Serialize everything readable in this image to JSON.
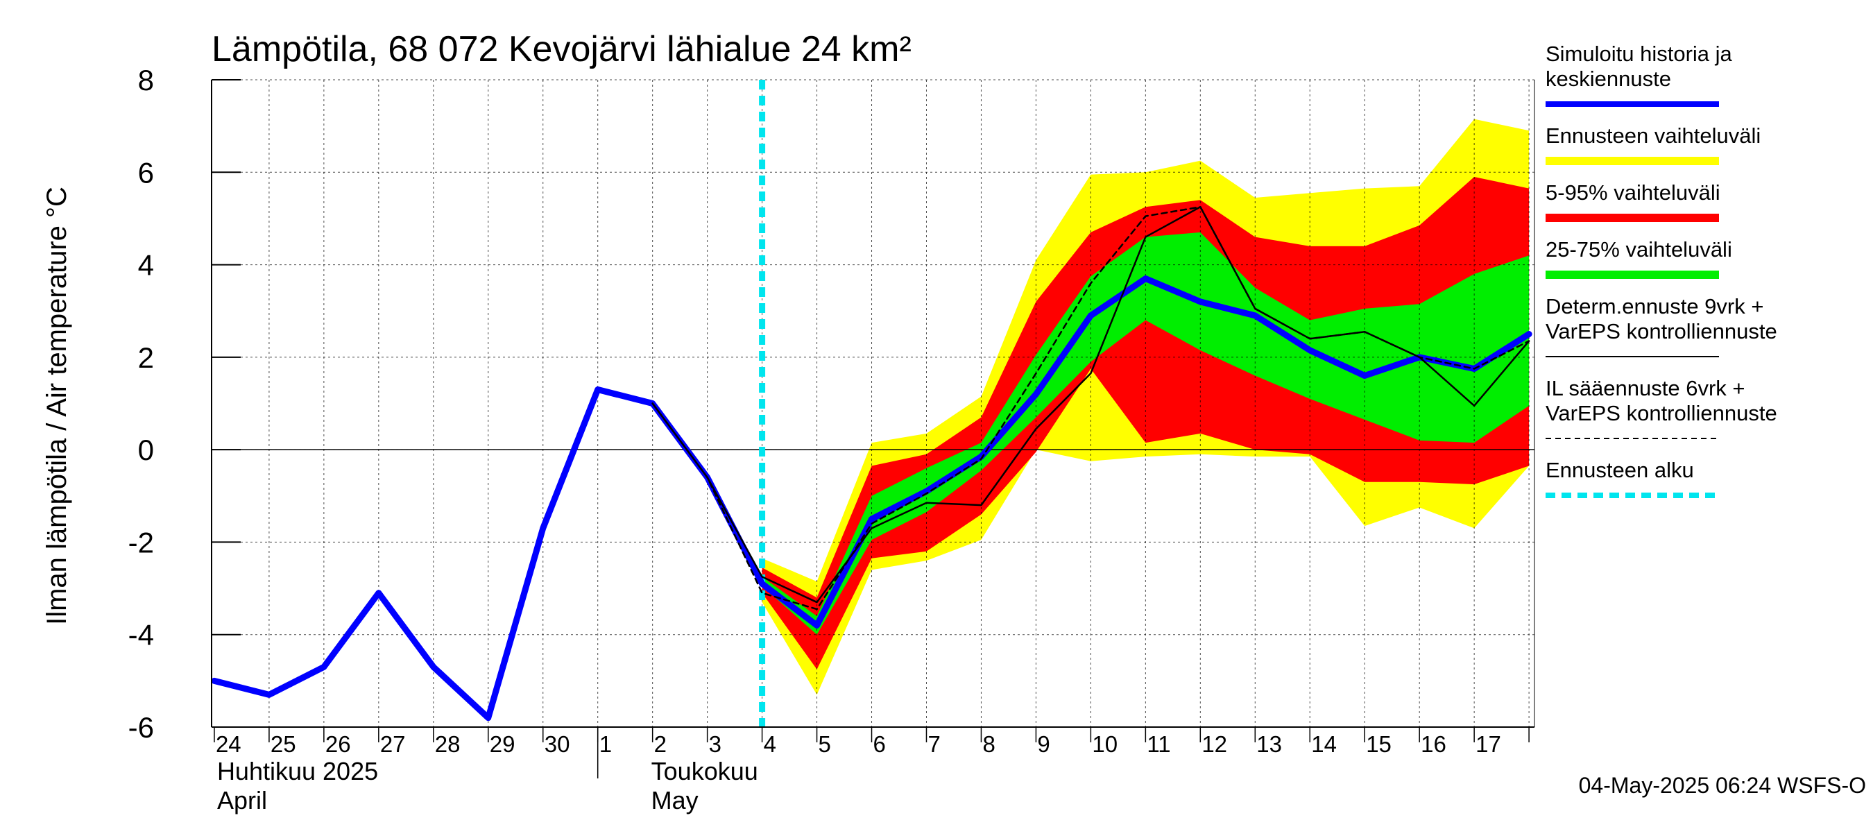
{
  "title": "Lämpötila, 68 072 Kevojärvi lähialue 24 km²",
  "footer": "04-May-2025 06:24 WSFS-O",
  "chart_data": {
    "type": "line",
    "title": "Lämpötila, 68 072 Kevojärvi lähialue 24 km²",
    "ylabel": "Ilman lämpötila / Air temperature   °C",
    "ylim": [
      -6,
      8
    ],
    "yticks": [
      -6,
      -4,
      -2,
      0,
      2,
      4,
      6,
      8
    ],
    "xlim": [
      -0.05,
      24.1
    ],
    "grid": true,
    "legend_position": "right",
    "day_labels": [
      "24",
      "25",
      "26",
      "27",
      "28",
      "29",
      "30",
      "1",
      "2",
      "3",
      "4",
      "5",
      "6",
      "7",
      "8",
      "9",
      "10",
      "11",
      "12",
      "13",
      "14",
      "15",
      "16",
      "17"
    ],
    "months": [
      {
        "label": "Huhtikuu  2025",
        "sublabel": "April",
        "start": 0
      },
      {
        "label": "Toukokuu",
        "sublabel": "May",
        "start": 7
      }
    ],
    "forecast_start": 10,
    "series": [
      {
        "name": "Simuloitu historia ja keskiennuste",
        "kind": "line",
        "color": "#0000ff",
        "x": [
          0,
          1,
          2,
          3,
          4,
          5,
          6,
          7,
          8,
          9,
          10,
          11,
          12,
          13,
          14,
          15,
          16,
          17,
          18,
          19,
          20,
          21,
          22,
          23,
          24
        ],
        "y": [
          -5.0,
          -5.3,
          -4.7,
          -3.1,
          -4.7,
          -5.8,
          -1.7,
          1.3,
          1.0,
          -0.6,
          -2.9,
          -3.8,
          -1.5,
          -0.9,
          -0.15,
          1.2,
          2.9,
          3.7,
          3.2,
          2.9,
          2.15,
          1.6,
          2.0,
          1.75,
          2.5
        ]
      },
      {
        "name": "Ennusteen vaihteluväli",
        "kind": "band",
        "color": "#ffff00",
        "x": [
          10,
          11,
          12,
          13,
          14,
          15,
          16,
          17,
          18,
          19,
          20,
          21,
          22,
          23,
          24
        ],
        "upper": [
          -2.35,
          -2.85,
          0.15,
          0.35,
          1.15,
          4.1,
          5.95,
          6.0,
          6.25,
          5.45,
          5.55,
          5.65,
          5.7,
          7.15,
          6.9
        ],
        "lower": [
          -3.3,
          -5.3,
          -2.6,
          -2.4,
          -1.95,
          0.0,
          -0.25,
          -0.15,
          -0.1,
          -0.15,
          -0.15,
          -1.65,
          -1.25,
          -1.7,
          -0.35
        ]
      },
      {
        "name": "5-95% vaihteluväli",
        "kind": "band",
        "color": "#ff0000",
        "x": [
          10,
          11,
          12,
          13,
          14,
          15,
          16,
          17,
          18,
          19,
          20,
          21,
          22,
          23,
          24
        ],
        "upper": [
          -2.55,
          -3.2,
          -0.35,
          -0.1,
          0.7,
          3.2,
          4.7,
          5.25,
          5.4,
          4.6,
          4.4,
          4.4,
          4.85,
          5.9,
          5.65
        ],
        "lower": [
          -3.1,
          -4.75,
          -2.35,
          -2.2,
          -1.4,
          -0.05,
          1.75,
          0.15,
          0.35,
          0.0,
          -0.1,
          -0.7,
          -0.7,
          -0.75,
          -0.35
        ]
      },
      {
        "name": "25-75% vaihteluväli",
        "kind": "band",
        "color": "#00ee00",
        "x": [
          10,
          11,
          12,
          13,
          14,
          15,
          16,
          17,
          18,
          19,
          20,
          21,
          22,
          23,
          24
        ],
        "upper": [
          -2.75,
          -3.6,
          -1.0,
          -0.4,
          0.15,
          2.05,
          3.75,
          4.6,
          4.7,
          3.5,
          2.8,
          3.05,
          3.15,
          3.8,
          4.2
        ],
        "lower": [
          -2.95,
          -4.0,
          -1.95,
          -1.35,
          -0.45,
          0.7,
          1.9,
          2.8,
          2.15,
          1.6,
          1.1,
          0.65,
          0.2,
          0.15,
          0.95
        ]
      },
      {
        "name": "Determ.ennuste 9vrk + VarEPS kontrolliennuste",
        "kind": "line",
        "color": "#000000",
        "x": [
          8,
          9,
          10,
          11,
          12,
          13,
          14,
          15,
          16,
          17,
          18,
          19,
          20,
          21,
          22,
          23,
          24
        ],
        "y": [
          1.0,
          -0.6,
          -2.75,
          -3.3,
          -1.7,
          -1.15,
          -1.2,
          0.45,
          1.65,
          4.6,
          5.25,
          3.05,
          2.4,
          2.55,
          2.0,
          0.95,
          2.35
        ]
      },
      {
        "name": "IL sääennuste 6vrk + VarEPS kontrolliennuste",
        "kind": "dashed",
        "color": "#000000",
        "x": [
          8,
          9,
          10,
          11,
          12,
          13,
          14,
          15,
          16,
          17,
          18,
          19,
          20,
          21,
          22,
          23,
          24
        ],
        "y": [
          1.0,
          -0.6,
          -3.1,
          -3.45,
          -1.6,
          -0.95,
          -0.2,
          1.65,
          3.6,
          5.05,
          5.25,
          3.05,
          2.4,
          2.55,
          2.0,
          1.75,
          2.35
        ]
      }
    ]
  },
  "legend": [
    {
      "lines": [
        "Simuloitu historia ja",
        "keskiennuste"
      ],
      "color": "#0000ff",
      "style": "thick"
    },
    {
      "lines": [
        "Ennusteen vaihteluväli"
      ],
      "color": "#ffff00",
      "style": "block"
    },
    {
      "lines": [
        "5-95% vaihteluväli"
      ],
      "color": "#ff0000",
      "style": "block"
    },
    {
      "lines": [
        "25-75% vaihteluväli"
      ],
      "color": "#00ee00",
      "style": "block"
    },
    {
      "lines": [
        "Determ.ennuste 9vrk +",
        "VarEPS kontrolliennuste"
      ],
      "color": "#000000",
      "style": "thin"
    },
    {
      "lines": [
        "IL sääennuste 6vrk  +",
        "  VarEPS kontrolliennuste"
      ],
      "color": "#000000",
      "style": "dashed"
    },
    {
      "lines": [
        "Ennusteen alku"
      ],
      "color": "#00e5ee",
      "style": "cyan-dashed"
    }
  ]
}
